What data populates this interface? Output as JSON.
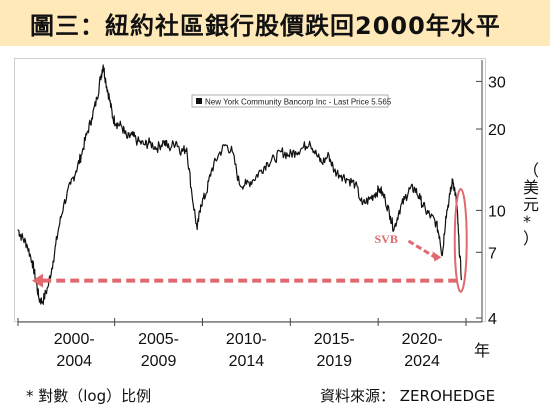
{
  "title": "圖三：紐約社區銀行股價跌回2000年水平",
  "footnote": "* 對數（log）比例",
  "source": "資料來源： ZEROHEDGE",
  "chart_data": {
    "type": "line",
    "y_scale": "log",
    "ylim": [
      4,
      36
    ],
    "y_ticks": [
      4,
      7,
      10,
      20,
      30
    ],
    "y_unit_label": "（美元*）",
    "x_unit_label": "年",
    "x_range": [
      1999.0,
      2024.5
    ],
    "x_groups": [
      {
        "line1": "2000-",
        "line2": "2004",
        "center": 2002.2
      },
      {
        "line1": "2005-",
        "line2": "2009",
        "center": 2007.0
      },
      {
        "line1": "2010-",
        "line2": "2014",
        "center": 2012.0
      },
      {
        "line1": "2015-",
        "line2": "2019",
        "center": 2017.0
      },
      {
        "line1": "2020-",
        "line2": "2024",
        "center": 2022.0
      }
    ],
    "x_tick_years": [
      1999.0,
      2004.5,
      2009.5,
      2014.5,
      2019.5,
      2024.5
    ],
    "legend": "New York Community Bancorp Inc - Last Price 5.565",
    "series": [
      {
        "name": "New York Community Bancorp Inc - Last Price 5.565",
        "points": [
          [
            1999.0,
            8.5
          ],
          [
            1999.2,
            8.0
          ],
          [
            1999.5,
            7.5
          ],
          [
            1999.8,
            6.5
          ],
          [
            2000.0,
            5.6
          ],
          [
            2000.2,
            4.7
          ],
          [
            2000.4,
            4.6
          ],
          [
            2000.7,
            5.2
          ],
          [
            2001.0,
            6.5
          ],
          [
            2001.3,
            8.5
          ],
          [
            2001.6,
            10.5
          ],
          [
            2002.0,
            12.5
          ],
          [
            2002.3,
            14.0
          ],
          [
            2002.6,
            16.0
          ],
          [
            2002.9,
            19.0
          ],
          [
            2003.2,
            22.0
          ],
          [
            2003.5,
            26.0
          ],
          [
            2003.7,
            31.0
          ],
          [
            2003.85,
            34.5
          ],
          [
            2004.0,
            30.0
          ],
          [
            2004.2,
            26.0
          ],
          [
            2004.4,
            22.0
          ],
          [
            2004.6,
            21.0
          ],
          [
            2004.9,
            20.5
          ],
          [
            2005.2,
            18.5
          ],
          [
            2005.5,
            19.0
          ],
          [
            2005.8,
            18.0
          ],
          [
            2006.2,
            17.5
          ],
          [
            2006.5,
            17.8
          ],
          [
            2006.9,
            17.0
          ],
          [
            2007.3,
            18.0
          ],
          [
            2007.6,
            17.0
          ],
          [
            2008.0,
            18.0
          ],
          [
            2008.3,
            16.5
          ],
          [
            2008.6,
            17.0
          ],
          [
            2008.9,
            11.5
          ],
          [
            2009.2,
            8.5
          ],
          [
            2009.4,
            10.5
          ],
          [
            2009.7,
            11.5
          ],
          [
            2010.0,
            14.0
          ],
          [
            2010.4,
            16.0
          ],
          [
            2010.8,
            17.5
          ],
          [
            2011.2,
            16.5
          ],
          [
            2011.6,
            12.5
          ],
          [
            2012.0,
            12.5
          ],
          [
            2012.4,
            13.0
          ],
          [
            2012.8,
            14.0
          ],
          [
            2013.2,
            15.0
          ],
          [
            2013.6,
            15.5
          ],
          [
            2014.0,
            16.5
          ],
          [
            2014.4,
            16.0
          ],
          [
            2014.8,
            16.5
          ],
          [
            2015.2,
            17.0
          ],
          [
            2015.6,
            18.0
          ],
          [
            2016.0,
            16.0
          ],
          [
            2016.3,
            15.0
          ],
          [
            2016.7,
            16.0
          ],
          [
            2017.0,
            14.0
          ],
          [
            2017.4,
            13.5
          ],
          [
            2017.8,
            13.0
          ],
          [
            2018.2,
            12.5
          ],
          [
            2018.6,
            10.5
          ],
          [
            2019.0,
            11.0
          ],
          [
            2019.3,
            11.5
          ],
          [
            2019.6,
            12.0
          ],
          [
            2019.9,
            11.0
          ],
          [
            2020.2,
            9.5
          ],
          [
            2020.4,
            8.5
          ],
          [
            2020.7,
            10.0
          ],
          [
            2021.0,
            11.0
          ],
          [
            2021.3,
            12.0
          ],
          [
            2021.6,
            12.0
          ],
          [
            2021.9,
            11.0
          ],
          [
            2022.2,
            10.0
          ],
          [
            2022.5,
            9.5
          ],
          [
            2022.8,
            9.0
          ],
          [
            2023.0,
            8.0
          ],
          [
            2023.15,
            6.8
          ],
          [
            2023.35,
            9.5
          ],
          [
            2023.6,
            11.5
          ],
          [
            2023.75,
            13.0
          ],
          [
            2023.9,
            11.5
          ],
          [
            2024.0,
            10.0
          ],
          [
            2024.1,
            7.5
          ],
          [
            2024.25,
            5.565
          ]
        ]
      }
    ],
    "annotations": [
      {
        "text": "SVB",
        "x": 2021.0,
        "y": 7.2
      },
      {
        "type": "dashed-arrow",
        "from_x": 2024.0,
        "to_x": 1999.8,
        "y": 5.5
      },
      {
        "type": "ellipse",
        "x": 2024.2
      }
    ],
    "colors": {
      "line": "#111111",
      "annotation": "#e0686e",
      "title_bg": "#ffe9b8"
    }
  }
}
